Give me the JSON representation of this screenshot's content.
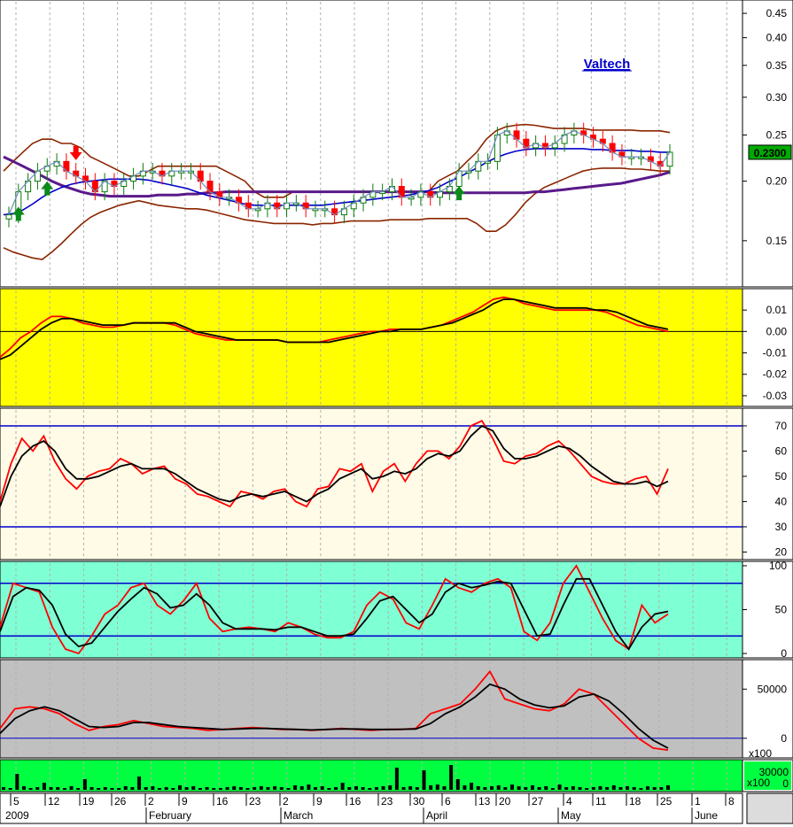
{
  "app": {
    "title": "Valtech"
  },
  "colors": {
    "price_bg": "#ffffff",
    "macd_bg": "#ffff00",
    "rsi_bg": "#fffbe6",
    "stoch_bg": "#7fffd4",
    "obv_bg": "#c0c0c0",
    "volume_bg": "#00ff40",
    "date_bg": "#ffffff",
    "red": "#ff0000",
    "black": "#000000",
    "blue": "#0000cc",
    "brown": "#8b2500",
    "purple": "#5a1a8a",
    "green_candle": "#0a7a0a",
    "last_price_bg": "#00aa00"
  },
  "chart_data": [
    {
      "type": "candlestick",
      "panel": "price",
      "title": "Valtech",
      "yscale": "log",
      "ylim": [
        0.12,
        0.48
      ],
      "yticks": [
        "0.45",
        "0.40",
        "0.35",
        "0.30",
        "0.25",
        "0.20",
        "0.15"
      ],
      "last_price": "0.2300",
      "grid": "vertical dotted",
      "series": [
        {
          "name": "close",
          "values": [
            0.17,
            0.19,
            0.2,
            0.21,
            0.215,
            0.22,
            0.21,
            0.205,
            0.2,
            0.19,
            0.2,
            0.195,
            0.2,
            0.205,
            0.21,
            0.21,
            0.205,
            0.21,
            0.21,
            0.21,
            0.2,
            0.19,
            0.185,
            0.185,
            0.18,
            0.175,
            0.175,
            0.18,
            0.175,
            0.18,
            0.18,
            0.175,
            0.175,
            0.175,
            0.17,
            0.175,
            0.18,
            0.185,
            0.19,
            0.19,
            0.195,
            0.185,
            0.185,
            0.19,
            0.185,
            0.19,
            0.195,
            0.21,
            0.21,
            0.22,
            0.22,
            0.25,
            0.255,
            0.245,
            0.235,
            0.24,
            0.235,
            0.24,
            0.25,
            0.255,
            0.25,
            0.245,
            0.24,
            0.23,
            0.225,
            0.225,
            0.225,
            0.22,
            0.215,
            0.23
          ]
        },
        {
          "name": "upper_band",
          "values": [
            0.21,
            0.22,
            0.23,
            0.24,
            0.245,
            0.245,
            0.24,
            0.24,
            0.235,
            0.225,
            0.22,
            0.215,
            0.21,
            0.205,
            0.205,
            0.21,
            0.215,
            0.215,
            0.215,
            0.215,
            0.215,
            0.215,
            0.215,
            0.21,
            0.205,
            0.2,
            0.19,
            0.185,
            0.185,
            0.185,
            0.19,
            0.19,
            0.19,
            0.19,
            0.19,
            0.19,
            0.19,
            0.19,
            0.19,
            0.19,
            0.19,
            0.19,
            0.19,
            0.19,
            0.19,
            0.2,
            0.205,
            0.21,
            0.22,
            0.23,
            0.245,
            0.255,
            0.26,
            0.262,
            0.263,
            0.262,
            0.26,
            0.258,
            0.258,
            0.258,
            0.258,
            0.256,
            0.256,
            0.256,
            0.256,
            0.256,
            0.255,
            0.255,
            0.255,
            0.253
          ]
        },
        {
          "name": "lower_band",
          "values": [
            0.145,
            0.142,
            0.14,
            0.138,
            0.137,
            0.142,
            0.148,
            0.155,
            0.162,
            0.168,
            0.172,
            0.175,
            0.178,
            0.18,
            0.182,
            0.18,
            0.178,
            0.177,
            0.176,
            0.175,
            0.175,
            0.174,
            0.172,
            0.17,
            0.168,
            0.166,
            0.165,
            0.164,
            0.163,
            0.163,
            0.163,
            0.163,
            0.162,
            0.163,
            0.163,
            0.164,
            0.165,
            0.165,
            0.165,
            0.165,
            0.166,
            0.166,
            0.166,
            0.166,
            0.167,
            0.167,
            0.167,
            0.167,
            0.167,
            0.163,
            0.157,
            0.157,
            0.162,
            0.17,
            0.18,
            0.188,
            0.194,
            0.198,
            0.202,
            0.206,
            0.21,
            0.212,
            0.213,
            0.213,
            0.213,
            0.212,
            0.212,
            0.211,
            0.21,
            0.21
          ]
        },
        {
          "name": "ma_blue",
          "values": [
            0.17,
            0.171,
            0.174,
            0.179,
            0.185,
            0.19,
            0.194,
            0.197,
            0.199,
            0.2,
            0.201,
            0.202,
            0.202,
            0.202,
            0.202,
            0.201,
            0.199,
            0.197,
            0.195,
            0.193,
            0.19,
            0.187,
            0.185,
            0.183,
            0.181,
            0.179,
            0.178,
            0.178,
            0.178,
            0.178,
            0.178,
            0.178,
            0.178,
            0.178,
            0.179,
            0.18,
            0.181,
            0.182,
            0.183,
            0.184,
            0.185,
            0.186,
            0.187,
            0.189,
            0.191,
            0.194,
            0.199,
            0.203,
            0.208,
            0.213,
            0.219,
            0.224,
            0.228,
            0.231,
            0.233,
            0.234,
            0.234,
            0.234,
            0.234,
            0.234,
            0.234,
            0.233,
            0.233,
            0.232,
            0.232,
            0.232,
            0.231,
            0.231,
            0.23,
            0.23
          ]
        },
        {
          "name": "ma_purple",
          "values": [
            0.225,
            0.22,
            0.215,
            0.21,
            0.205,
            0.2,
            0.196,
            0.193,
            0.19,
            0.188,
            0.187,
            0.186,
            0.186,
            0.186,
            0.186,
            0.186,
            0.187,
            0.187,
            0.187,
            0.188,
            0.188,
            0.189,
            0.189,
            0.19,
            0.19,
            0.19,
            0.19,
            0.19,
            0.19,
            0.19,
            0.19,
            0.19,
            0.19,
            0.19,
            0.19,
            0.19,
            0.19,
            0.19,
            0.19,
            0.19,
            0.19,
            0.19,
            0.19,
            0.19,
            0.19,
            0.189,
            0.189,
            0.189,
            0.189,
            0.189,
            0.189,
            0.189,
            0.189,
            0.189,
            0.189,
            0.19,
            0.19,
            0.191,
            0.192,
            0.193,
            0.194,
            0.195,
            0.196,
            0.197,
            0.198,
            0.2,
            0.202,
            0.204,
            0.206,
            0.209
          ]
        }
      ],
      "signals": [
        {
          "type": "buy",
          "index": 1
        },
        {
          "type": "buy",
          "index": 4
        },
        {
          "type": "sell",
          "index": 7
        },
        {
          "type": "buy",
          "index": 47
        }
      ]
    },
    {
      "type": "line",
      "panel": "macd",
      "ylim": [
        -0.035,
        0.02
      ],
      "yticks": [
        "0.01",
        "0.00",
        "-0.01",
        "-0.02",
        "-0.03"
      ],
      "series": [
        {
          "name": "macd",
          "values": [
            -0.012,
            -0.008,
            -0.003,
            0.0,
            0.004,
            0.007,
            0.007,
            0.006,
            0.004,
            0.003,
            0.002,
            0.002,
            0.003,
            0.004,
            0.004,
            0.004,
            0.004,
            0.003,
            0.001,
            -0.001,
            -0.002,
            -0.003,
            -0.004,
            -0.004,
            -0.004,
            -0.004,
            -0.004,
            -0.004,
            -0.005,
            -0.005,
            -0.005,
            -0.005,
            -0.004,
            -0.003,
            -0.002,
            -0.001,
            0.0,
            0.0,
            0.001,
            0.001,
            0.001,
            0.001,
            0.002,
            0.003,
            0.005,
            0.007,
            0.009,
            0.012,
            0.015,
            0.016,
            0.015,
            0.013,
            0.012,
            0.011,
            0.01,
            0.01,
            0.01,
            0.01,
            0.01,
            0.009,
            0.007,
            0.005,
            0.003,
            0.002,
            0.001,
            0.0
          ]
        },
        {
          "name": "signal",
          "values": [
            -0.013,
            -0.011,
            -0.007,
            -0.003,
            0.001,
            0.004,
            0.006,
            0.006,
            0.005,
            0.004,
            0.003,
            0.003,
            0.003,
            0.004,
            0.004,
            0.004,
            0.004,
            0.004,
            0.002,
            0.0,
            -0.001,
            -0.002,
            -0.003,
            -0.004,
            -0.004,
            -0.004,
            -0.004,
            -0.004,
            -0.005,
            -0.005,
            -0.005,
            -0.005,
            -0.005,
            -0.004,
            -0.003,
            -0.002,
            -0.001,
            0.0,
            0.0,
            0.001,
            0.001,
            0.001,
            0.002,
            0.003,
            0.004,
            0.006,
            0.008,
            0.01,
            0.013,
            0.015,
            0.015,
            0.014,
            0.013,
            0.012,
            0.011,
            0.011,
            0.011,
            0.011,
            0.01,
            0.01,
            0.009,
            0.007,
            0.005,
            0.003,
            0.002,
            0.001
          ]
        }
      ]
    },
    {
      "type": "line",
      "panel": "rsi",
      "ylim": [
        17,
        77
      ],
      "yticks": [
        "70",
        "60",
        "50",
        "40",
        "30",
        "20"
      ],
      "reference_lines": [
        70,
        30
      ],
      "series": [
        {
          "name": "rsi_red",
          "values": [
            40,
            55,
            65,
            60,
            66,
            56,
            49,
            45,
            50,
            52,
            53,
            57,
            55,
            51,
            53,
            54,
            49,
            47,
            43,
            42,
            40,
            38,
            44,
            43,
            41,
            44,
            45,
            40,
            38,
            45,
            46,
            53,
            52,
            55,
            44,
            52,
            55,
            48,
            55,
            60,
            60,
            57,
            62,
            70,
            72,
            65,
            56,
            55,
            58,
            59,
            62,
            64,
            60,
            55,
            50,
            48,
            47,
            47,
            49,
            50,
            43,
            53
          ]
        },
        {
          "name": "rsi_black",
          "values": [
            38,
            50,
            58,
            62,
            64,
            60,
            53,
            49,
            49,
            50,
            52,
            54,
            55,
            53,
            53,
            53,
            51,
            48,
            45,
            43,
            41,
            40,
            42,
            43,
            42,
            43,
            44,
            42,
            40,
            43,
            45,
            49,
            51,
            53,
            49,
            50,
            52,
            51,
            53,
            57,
            59,
            58,
            60,
            66,
            70,
            68,
            61,
            57,
            57,
            58,
            60,
            62,
            61,
            58,
            54,
            51,
            48,
            47,
            47,
            48,
            46,
            48
          ]
        }
      ]
    },
    {
      "type": "line",
      "panel": "stochastic",
      "ylim": [
        -5,
        105
      ],
      "yticks": [
        "100",
        "50",
        "0"
      ],
      "reference_lines": [
        80,
        20
      ],
      "series": [
        {
          "name": "stoch_red",
          "values": [
            30,
            80,
            75,
            70,
            30,
            5,
            0,
            20,
            45,
            55,
            75,
            80,
            55,
            45,
            60,
            80,
            40,
            25,
            28,
            30,
            28,
            25,
            35,
            30,
            22,
            18,
            18,
            25,
            55,
            70,
            62,
            35,
            28,
            55,
            85,
            75,
            70,
            80,
            85,
            75,
            25,
            15,
            35,
            80,
            100,
            70,
            40,
            15,
            5,
            55,
            35,
            45
          ]
        },
        {
          "name": "stoch_black",
          "values": [
            25,
            65,
            75,
            72,
            55,
            22,
            8,
            12,
            30,
            48,
            62,
            75,
            68,
            52,
            55,
            68,
            55,
            35,
            28,
            28,
            28,
            27,
            30,
            30,
            25,
            20,
            20,
            22,
            40,
            60,
            65,
            50,
            35,
            45,
            70,
            80,
            75,
            78,
            82,
            80,
            50,
            20,
            22,
            55,
            85,
            85,
            55,
            25,
            5,
            30,
            45,
            48
          ]
        }
      ]
    },
    {
      "type": "line",
      "panel": "obv",
      "ylim": [
        -20000,
        80000
      ],
      "yticks": [
        "50000",
        "0"
      ],
      "series": [
        {
          "name": "obv_red",
          "values": [
            10000,
            30000,
            32000,
            30000,
            25000,
            15000,
            8000,
            12000,
            14000,
            18000,
            15000,
            12000,
            11000,
            10000,
            8000,
            9000,
            10000,
            11000,
            10000,
            9000,
            9000,
            8000,
            9000,
            10000,
            9000,
            8000,
            9000,
            9000,
            10000,
            25000,
            30000,
            35000,
            50000,
            68000,
            40000,
            35000,
            30000,
            28000,
            35000,
            50000,
            45000,
            30000,
            15000,
            0,
            -10000,
            -12000
          ]
        },
        {
          "name": "obv_black",
          "values": [
            5000,
            20000,
            28000,
            32000,
            28000,
            20000,
            12000,
            11000,
            12000,
            16000,
            16000,
            14000,
            12000,
            11000,
            10000,
            9000,
            9500,
            10000,
            10000,
            9500,
            9000,
            8500,
            9000,
            9500,
            9500,
            9000,
            9000,
            9200,
            9500,
            15000,
            25000,
            32000,
            42000,
            55000,
            50000,
            40000,
            34000,
            31000,
            33000,
            42000,
            45000,
            38000,
            25000,
            10000,
            -2000,
            -10000
          ]
        }
      ]
    },
    {
      "type": "bar",
      "panel": "volume",
      "yticks": [
        "30000",
        "0"
      ],
      "scale_note": "x100",
      "values": [
        3,
        2,
        18,
        4,
        2,
        3,
        8,
        3,
        3,
        2,
        4,
        2,
        12,
        3,
        2,
        3,
        2,
        2,
        4,
        3,
        15,
        3,
        4,
        2,
        3,
        2,
        5,
        3,
        4,
        2,
        3,
        2,
        2,
        3,
        4,
        3,
        2,
        3,
        4,
        3,
        4,
        3,
        2,
        5,
        4,
        6,
        3,
        4,
        2,
        3,
        8,
        3,
        4,
        3,
        2,
        3,
        4,
        5,
        25,
        3,
        4,
        3,
        22,
        5,
        6,
        4,
        28,
        12,
        5,
        8,
        4,
        3,
        4,
        5,
        3,
        6,
        4,
        3,
        5,
        3,
        4,
        2,
        6,
        3,
        4,
        3,
        2,
        3,
        4,
        3,
        5,
        3,
        4,
        3,
        2,
        4,
        3,
        3,
        5
      ]
    }
  ],
  "scale_notes": {
    "obv": "x100",
    "volume": "x100"
  },
  "date_axis": {
    "year": "2009",
    "days": [
      "5",
      "12",
      "19",
      "26",
      "2",
      "9",
      "16",
      "23",
      "2",
      "9",
      "16",
      "23",
      "30",
      "6",
      "13",
      "20",
      "27",
      "4",
      "11",
      "18",
      "25",
      "1",
      "8"
    ],
    "months": [
      "February",
      "March",
      "April",
      "May",
      "June"
    ]
  }
}
